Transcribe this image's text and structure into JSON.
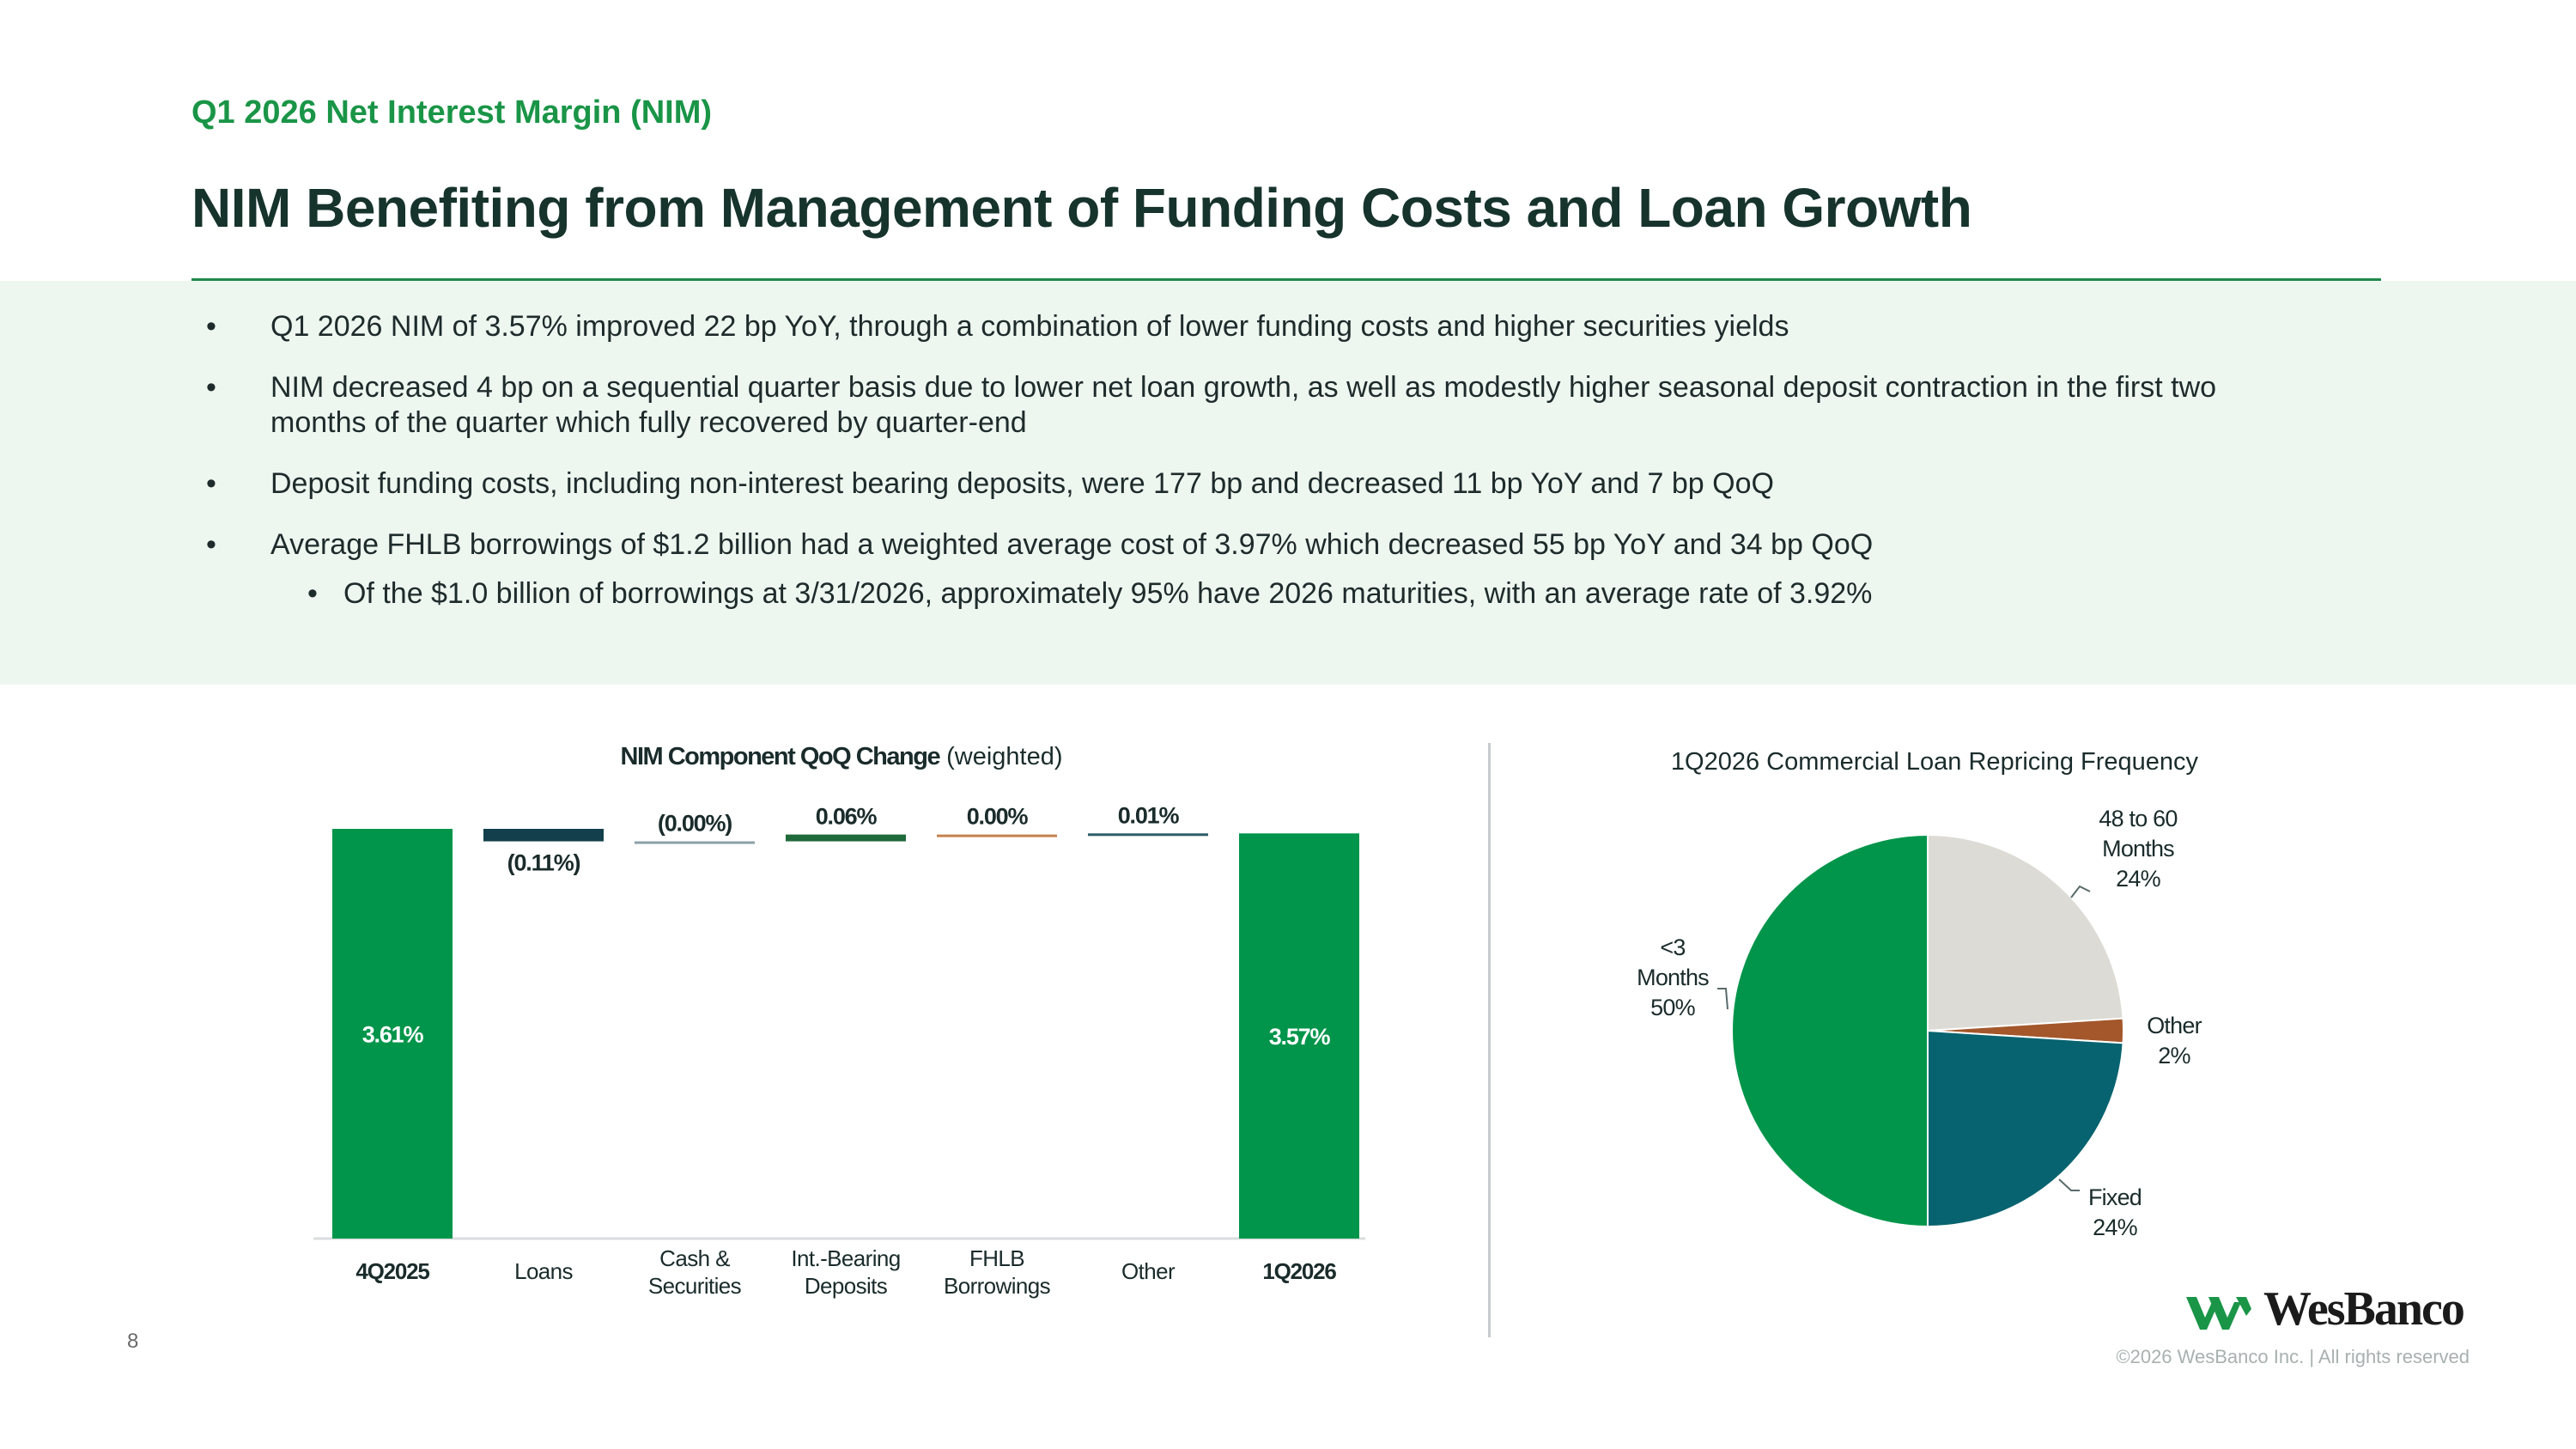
{
  "header": {
    "eyebrow": "Q1 2026 Net Interest Margin (NIM)",
    "title": "NIM Benefiting from Management of Funding Costs and Loan Growth"
  },
  "bullets": [
    "Q1 2026 NIM of 3.57% improved 22 bp YoY, through a combination of lower funding costs and higher securities yields",
    "NIM decreased 4 bp on a sequential quarter basis due to lower net loan growth, as well as modestly higher seasonal deposit contraction in the first two months of the quarter which fully recovered by quarter-end",
    "Deposit funding costs, including non-interest bearing deposits, were 177 bp and decreased 11 bp YoY and 7 bp QoQ",
    "Average FHLB borrowings of $1.2 billion had a weighted average cost of 3.97% which decreased 55 bp YoY and 34 bp QoQ"
  ],
  "sub_bullet": "Of the $1.0 billion of borrowings at 3/31/2026, approximately 95% have 2026 maturities, with an average rate of 3.92%",
  "bullet_glyph": "•",
  "chart_data": [
    {
      "type": "bar",
      "subtype": "waterfall",
      "title": "NIM Component QoQ Change",
      "title_suffix": "(weighted)",
      "categories": [
        "4Q2025",
        "Loans",
        "Cash & Securities",
        "Int.-Bearing Deposits",
        "FHLB Borrowings",
        "Other",
        "1Q2026"
      ],
      "category_lines": [
        [
          "4Q2025"
        ],
        [
          "Loans"
        ],
        [
          "Cash &",
          "Securities"
        ],
        [
          "Int.-Bearing",
          "Deposits"
        ],
        [
          "FHLB",
          "Borrowings"
        ],
        [
          "Other"
        ],
        [
          "1Q2026"
        ]
      ],
      "values": [
        3.61,
        -0.11,
        -0.0,
        0.06,
        0.0,
        0.01,
        3.57
      ],
      "labels": [
        "3.61%",
        "(0.11%)",
        "(0.00%)",
        "0.06%",
        "0.00%",
        "0.01%",
        "3.57%"
      ],
      "kinds": [
        "total",
        "delta",
        "delta",
        "delta",
        "delta",
        "delta",
        "total"
      ],
      "colors": [
        "#00954a",
        "#123f4b",
        "#8aa0a8",
        "#1f6a3b",
        "#c6814d",
        "#2d5d66",
        "#00954a"
      ],
      "bold_categories": [
        true,
        false,
        false,
        false,
        false,
        false,
        true
      ]
    },
    {
      "type": "pie",
      "title": "1Q2026 Commercial Loan Repricing Frequency",
      "slices": [
        {
          "label": "48 to 60 Months",
          "label_lines": [
            "48 to 60",
            "Months"
          ],
          "percent": "24%",
          "value": 24,
          "color": "#dcdbd5"
        },
        {
          "label": "Other",
          "label_lines": [
            "Other"
          ],
          "percent": "2%",
          "value": 2,
          "color": "#a3572a"
        },
        {
          "label": "Fixed",
          "label_lines": [
            "Fixed"
          ],
          "percent": "24%",
          "value": 24,
          "color": "#07636f"
        },
        {
          "label": "<3 Months",
          "label_lines": [
            "<3",
            "Months"
          ],
          "percent": "50%",
          "value": 50,
          "color": "#00954a"
        }
      ]
    }
  ],
  "footer": {
    "page_number": "8",
    "logo_text": "WesBanco",
    "copyright": "©2026 WesBanco Inc.  |  All rights reserved"
  },
  "colors": {
    "brand_green": "#1a9547",
    "title_dark": "#16332c",
    "band_bg": "#eef6f0"
  }
}
